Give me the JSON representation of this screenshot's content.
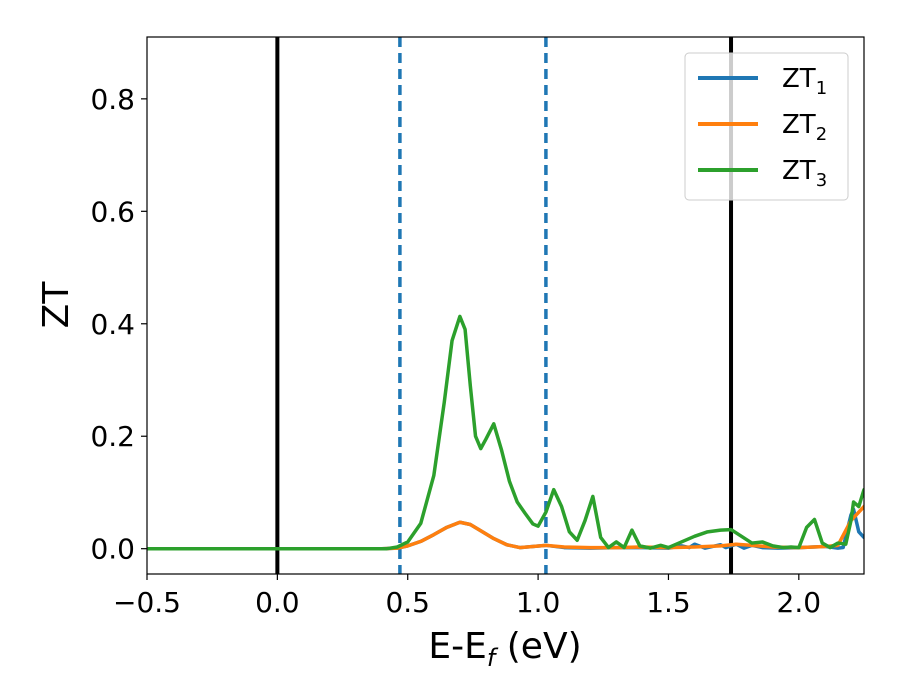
{
  "chart_data": {
    "type": "line",
    "xlabel": {
      "main": "E-E",
      "sub": "f",
      "unit": " (eV)"
    },
    "ylabel": "ZT",
    "xlim": [
      -0.5,
      2.25
    ],
    "ylim": [
      -0.045,
      0.91
    ],
    "x_ticks": [
      {
        "value": -0.5,
        "label": "−0.5"
      },
      {
        "value": 0.0,
        "label": "0.0"
      },
      {
        "value": 0.5,
        "label": "0.5"
      },
      {
        "value": 1.0,
        "label": "1.0"
      },
      {
        "value": 1.5,
        "label": "1.5"
      },
      {
        "value": 2.0,
        "label": "2.0"
      }
    ],
    "y_ticks": [
      {
        "value": 0.0,
        "label": "0.0"
      },
      {
        "value": 0.2,
        "label": "0.2"
      },
      {
        "value": 0.4,
        "label": "0.4"
      },
      {
        "value": 0.6,
        "label": "0.6"
      },
      {
        "value": 0.8,
        "label": "0.8"
      }
    ],
    "grid": false,
    "legend_position": "top-right",
    "vertical_lines": [
      {
        "x": 0.0,
        "style": "solid",
        "color": "#000000"
      },
      {
        "x": 0.47,
        "style": "dashed",
        "color": "#1f77b4"
      },
      {
        "x": 1.03,
        "style": "dashed",
        "color": "#1f77b4"
      },
      {
        "x": 1.74,
        "style": "solid",
        "color": "#000000"
      }
    ],
    "series": [
      {
        "name": "ZT",
        "sub": "1",
        "color": "#1f77b4",
        "points": [
          [
            -0.5,
            0
          ],
          [
            0.4,
            0
          ],
          [
            0.46,
            0.001
          ],
          [
            0.5,
            0.005
          ],
          [
            0.55,
            0.013
          ],
          [
            0.6,
            0.025
          ],
          [
            0.65,
            0.038
          ],
          [
            0.7,
            0.047
          ],
          [
            0.74,
            0.043
          ],
          [
            0.78,
            0.032
          ],
          [
            0.83,
            0.018
          ],
          [
            0.88,
            0.007
          ],
          [
            0.93,
            0.002
          ],
          [
            0.98,
            0.004
          ],
          [
            1.03,
            0.006
          ],
          [
            1.1,
            0.002
          ],
          [
            1.2,
            0.001
          ],
          [
            1.3,
            0.002
          ],
          [
            1.4,
            0.002
          ],
          [
            1.5,
            0.001
          ],
          [
            1.55,
            0.005
          ],
          [
            1.58,
            0.002
          ],
          [
            1.6,
            0.008
          ],
          [
            1.64,
            0.001
          ],
          [
            1.67,
            0.004
          ],
          [
            1.7,
            0.007
          ],
          [
            1.72,
            0.002
          ],
          [
            1.76,
            0.008
          ],
          [
            1.79,
            0.001
          ],
          [
            1.82,
            0.006
          ],
          [
            1.86,
            0.002
          ],
          [
            1.92,
            0.001
          ],
          [
            2.0,
            0.002
          ],
          [
            2.1,
            0.004
          ],
          [
            2.15,
            0.001
          ],
          [
            2.17,
            0.002
          ],
          [
            2.2,
            0.06
          ],
          [
            2.21,
            0.07
          ],
          [
            2.23,
            0.03
          ],
          [
            2.25,
            0.02
          ]
        ]
      },
      {
        "name": "ZT",
        "sub": "2",
        "color": "#ff7f0e",
        "points": [
          [
            -0.5,
            0
          ],
          [
            0.4,
            0
          ],
          [
            0.46,
            0.001
          ],
          [
            0.5,
            0.005
          ],
          [
            0.55,
            0.013
          ],
          [
            0.6,
            0.025
          ],
          [
            0.65,
            0.038
          ],
          [
            0.7,
            0.047
          ],
          [
            0.74,
            0.043
          ],
          [
            0.78,
            0.032
          ],
          [
            0.83,
            0.018
          ],
          [
            0.88,
            0.007
          ],
          [
            0.93,
            0.002
          ],
          [
            0.98,
            0.004
          ],
          [
            1.03,
            0.006
          ],
          [
            1.1,
            0.003
          ],
          [
            1.2,
            0.002
          ],
          [
            1.3,
            0.002
          ],
          [
            1.4,
            0.003
          ],
          [
            1.5,
            0.002
          ],
          [
            1.6,
            0.003
          ],
          [
            1.7,
            0.005
          ],
          [
            1.76,
            0.008
          ],
          [
            1.82,
            0.006
          ],
          [
            1.9,
            0.003
          ],
          [
            2.0,
            0.002
          ],
          [
            2.1,
            0.004
          ],
          [
            2.15,
            0.006
          ],
          [
            2.2,
            0.05
          ],
          [
            2.25,
            0.075
          ]
        ]
      },
      {
        "name": "ZT",
        "sub": "3",
        "color": "#2ca02c",
        "points": [
          [
            -0.5,
            0
          ],
          [
            0.42,
            0
          ],
          [
            0.46,
            0.003
          ],
          [
            0.5,
            0.012
          ],
          [
            0.55,
            0.045
          ],
          [
            0.6,
            0.13
          ],
          [
            0.64,
            0.26
          ],
          [
            0.67,
            0.37
          ],
          [
            0.7,
            0.413
          ],
          [
            0.72,
            0.39
          ],
          [
            0.74,
            0.29
          ],
          [
            0.76,
            0.2
          ],
          [
            0.78,
            0.178
          ],
          [
            0.8,
            0.195
          ],
          [
            0.83,
            0.222
          ],
          [
            0.86,
            0.175
          ],
          [
            0.89,
            0.12
          ],
          [
            0.92,
            0.083
          ],
          [
            0.95,
            0.063
          ],
          [
            0.98,
            0.044
          ],
          [
            1.0,
            0.04
          ],
          [
            1.03,
            0.065
          ],
          [
            1.06,
            0.105
          ],
          [
            1.09,
            0.075
          ],
          [
            1.12,
            0.03
          ],
          [
            1.15,
            0.015
          ],
          [
            1.18,
            0.05
          ],
          [
            1.21,
            0.093
          ],
          [
            1.24,
            0.02
          ],
          [
            1.27,
            0.002
          ],
          [
            1.3,
            0.012
          ],
          [
            1.33,
            0.002
          ],
          [
            1.36,
            0.033
          ],
          [
            1.39,
            0.005
          ],
          [
            1.43,
            0.001
          ],
          [
            1.47,
            0.006
          ],
          [
            1.5,
            0.002
          ],
          [
            1.55,
            0.012
          ],
          [
            1.6,
            0.022
          ],
          [
            1.65,
            0.03
          ],
          [
            1.7,
            0.033
          ],
          [
            1.74,
            0.034
          ],
          [
            1.78,
            0.022
          ],
          [
            1.82,
            0.01
          ],
          [
            1.86,
            0.012
          ],
          [
            1.9,
            0.005
          ],
          [
            1.94,
            0.002
          ],
          [
            1.97,
            0.003
          ],
          [
            2.0,
            0.002
          ],
          [
            2.03,
            0.038
          ],
          [
            2.06,
            0.052
          ],
          [
            2.09,
            0.01
          ],
          [
            2.12,
            0.002
          ],
          [
            2.15,
            0.01
          ],
          [
            2.18,
            0.008
          ],
          [
            2.2,
            0.05
          ],
          [
            2.21,
            0.083
          ],
          [
            2.23,
            0.075
          ],
          [
            2.25,
            0.105
          ]
        ]
      }
    ]
  }
}
